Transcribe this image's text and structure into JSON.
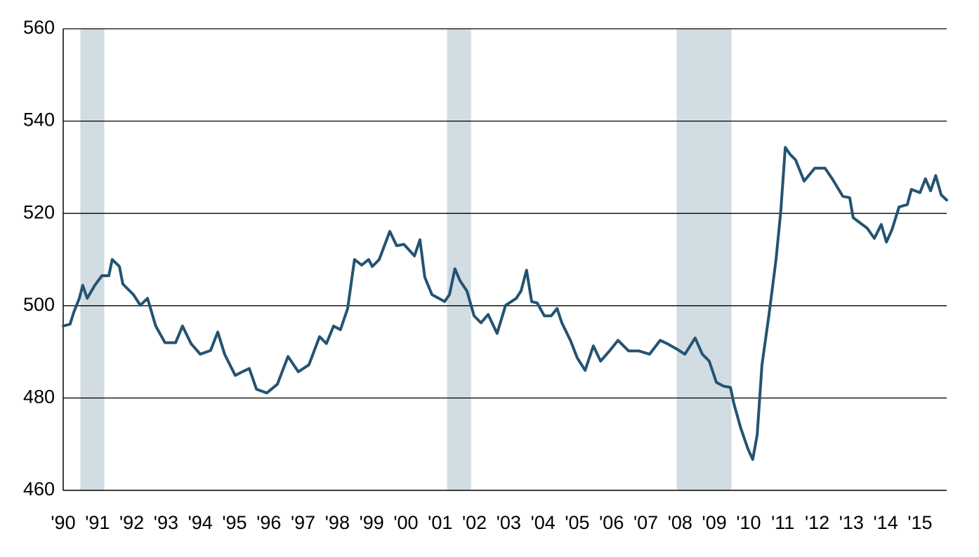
{
  "chart_data": {
    "type": "line",
    "x": [
      1990.0,
      1990.2,
      1990.31,
      1990.47,
      1990.57,
      1990.7,
      1990.92,
      1991.13,
      1991.33,
      1991.43,
      1991.64,
      1991.74,
      1992.05,
      1992.25,
      1992.46,
      1992.7,
      1992.97,
      1993.28,
      1993.48,
      1993.73,
      1994.0,
      1994.3,
      1994.51,
      1994.71,
      1995.02,
      1995.23,
      1995.43,
      1995.64,
      1995.94,
      1996.25,
      1996.56,
      1996.86,
      1997.17,
      1997.48,
      1997.68,
      1997.89,
      1998.09,
      1998.3,
      1998.5,
      1998.71,
      1998.91,
      1999.02,
      1999.22,
      1999.53,
      1999.73,
      1999.94,
      2000.25,
      2000.41,
      2000.55,
      2000.76,
      2000.96,
      2001.13,
      2001.27,
      2001.43,
      2001.58,
      2001.78,
      2001.99,
      2002.19,
      2002.4,
      2002.66,
      2002.91,
      2003.22,
      2003.36,
      2003.52,
      2003.67,
      2003.83,
      2004.04,
      2004.24,
      2004.41,
      2004.55,
      2004.8,
      2005.0,
      2005.23,
      2005.47,
      2005.68,
      2005.94,
      2006.19,
      2006.5,
      2006.8,
      2007.11,
      2007.42,
      2007.62,
      2007.93,
      2008.14,
      2008.44,
      2008.65,
      2008.85,
      2009.06,
      2009.26,
      2009.47,
      2009.57,
      2009.77,
      2009.98,
      2010.12,
      2010.25,
      2010.39,
      2010.59,
      2010.8,
      2010.94,
      2011.07,
      2011.21,
      2011.37,
      2011.62,
      2011.93,
      2012.23,
      2012.44,
      2012.75,
      2012.95,
      2013.05,
      2013.26,
      2013.46,
      2013.67,
      2013.87,
      2014.02,
      2014.18,
      2014.39,
      2014.63,
      2014.75,
      2015.0,
      2015.16,
      2015.31,
      2015.46,
      2015.62,
      2015.78
    ],
    "values": [
      495.6,
      496,
      498.6,
      501.6,
      504.4,
      501.6,
      504.4,
      506.5,
      506.5,
      510,
      508.5,
      504.7,
      502.4,
      500.1,
      501.6,
      495.6,
      492,
      492,
      495.6,
      491.8,
      489.5,
      490.3,
      494.3,
      489.5,
      484.9,
      485.7,
      486.4,
      481.9,
      481.1,
      483,
      489,
      485.7,
      487.2,
      493.3,
      491.8,
      495.6,
      494.8,
      499.4,
      510,
      508.8,
      510,
      508.5,
      510,
      516.1,
      513,
      513.3,
      510.8,
      514.3,
      506.2,
      502.4,
      501.6,
      500.9,
      502.4,
      508,
      505.4,
      503.2,
      497.8,
      496.3,
      498.1,
      494,
      500.1,
      501.6,
      503.2,
      507.7,
      500.9,
      500.6,
      497.8,
      497.8,
      499.4,
      496.3,
      492.5,
      488.7,
      486,
      491.3,
      488,
      490.2,
      492.5,
      490.2,
      490.2,
      489.5,
      492.5,
      491.8,
      490.5,
      489.5,
      493,
      489.5,
      488,
      483.4,
      482.6,
      482.3,
      478.8,
      473.5,
      469,
      466.7,
      472,
      487.2,
      497.8,
      510,
      520.6,
      534.3,
      532.8,
      531.6,
      527,
      529.8,
      529.8,
      527.5,
      523.7,
      523.4,
      519.1,
      517.9,
      516.8,
      514.6,
      517.6,
      513.8,
      516.4,
      521.4,
      521.9,
      525.2,
      524.5,
      527.5,
      524.9,
      528.2,
      524,
      522.9
    ],
    "color": "#245372",
    "recessions": [
      [
        1990.5,
        1991.2
      ],
      [
        2001.2,
        2001.9
      ],
      [
        2007.9,
        2009.5
      ]
    ],
    "recession_color": "#d1dce3",
    "xlim": [
      1990,
      2015.78
    ],
    "xticks": [
      {
        "value": 1990,
        "label": "'90"
      },
      {
        "value": 1991,
        "label": "'91"
      },
      {
        "value": 1992,
        "label": "'92"
      },
      {
        "value": 1993,
        "label": "'93"
      },
      {
        "value": 1994,
        "label": "'94"
      },
      {
        "value": 1995,
        "label": "'95"
      },
      {
        "value": 1996,
        "label": "'96"
      },
      {
        "value": 1997,
        "label": "'97"
      },
      {
        "value": 1998,
        "label": "'98"
      },
      {
        "value": 1999,
        "label": "'99"
      },
      {
        "value": 2000,
        "label": "'00"
      },
      {
        "value": 2001,
        "label": "'01"
      },
      {
        "value": 2002,
        "label": "'02"
      },
      {
        "value": 2003,
        "label": "'03"
      },
      {
        "value": 2004,
        "label": "'04"
      },
      {
        "value": 2005,
        "label": "'05"
      },
      {
        "value": 2006,
        "label": "'06"
      },
      {
        "value": 2007,
        "label": "'07"
      },
      {
        "value": 2008,
        "label": "'08"
      },
      {
        "value": 2009,
        "label": "'09"
      },
      {
        "value": 2010,
        "label": "'10"
      },
      {
        "value": 2011,
        "label": "'11"
      },
      {
        "value": 2012,
        "label": "'12"
      },
      {
        "value": 2013,
        "label": "'13"
      },
      {
        "value": 2014,
        "label": "'14"
      },
      {
        "value": 2015,
        "label": "'15"
      }
    ],
    "ylim": [
      460,
      560
    ],
    "yticks": [
      460,
      480,
      500,
      520,
      540,
      560
    ],
    "grid": true
  }
}
